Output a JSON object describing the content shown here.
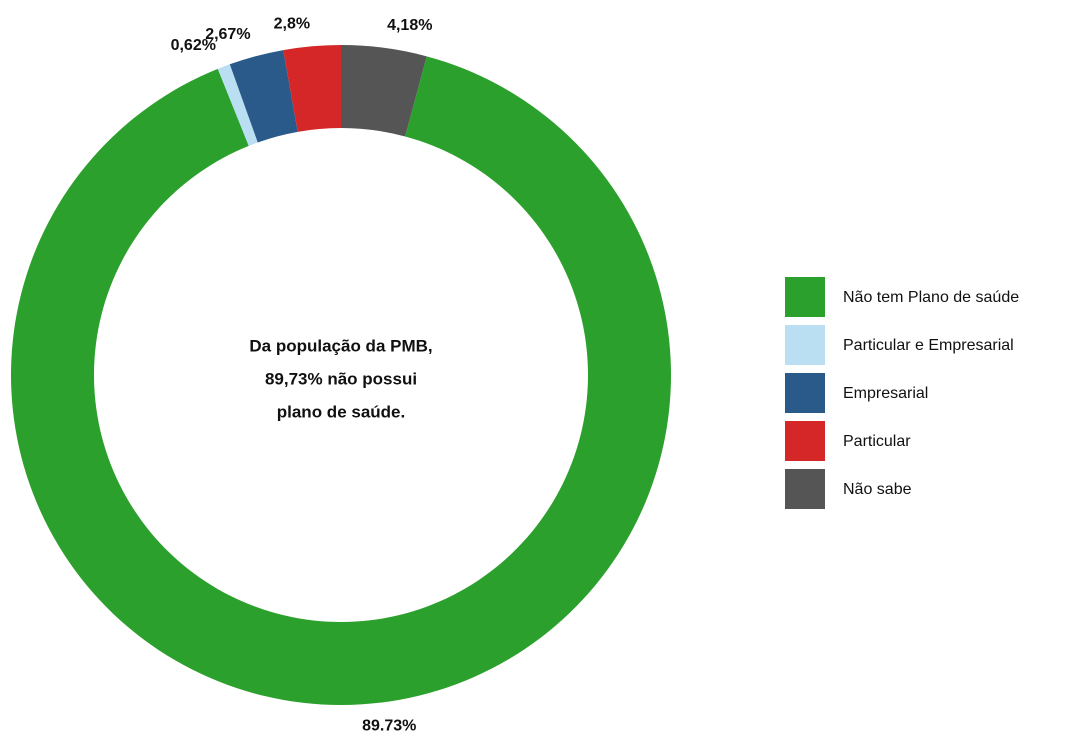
{
  "chart_data": {
    "type": "donut",
    "categories": [
      "Não tem Plano de saúde",
      "Particular e Empresarial",
      "Empresarial",
      "Particular",
      "Não sabe"
    ],
    "values": [
      89.73,
      0.62,
      2.67,
      2.8,
      4.18
    ],
    "value_labels": [
      "89.73%",
      "0,62%",
      "2,67%",
      "2,8%",
      "4,18%"
    ],
    "colors": [
      "#2ca02c",
      "#bbdff2",
      "#2a5a8a",
      "#d62728",
      "#555555"
    ],
    "center_text": [
      "Da população da PMB,",
      "89,73% não possui",
      "plano de saúde."
    ],
    "legend": "right"
  }
}
